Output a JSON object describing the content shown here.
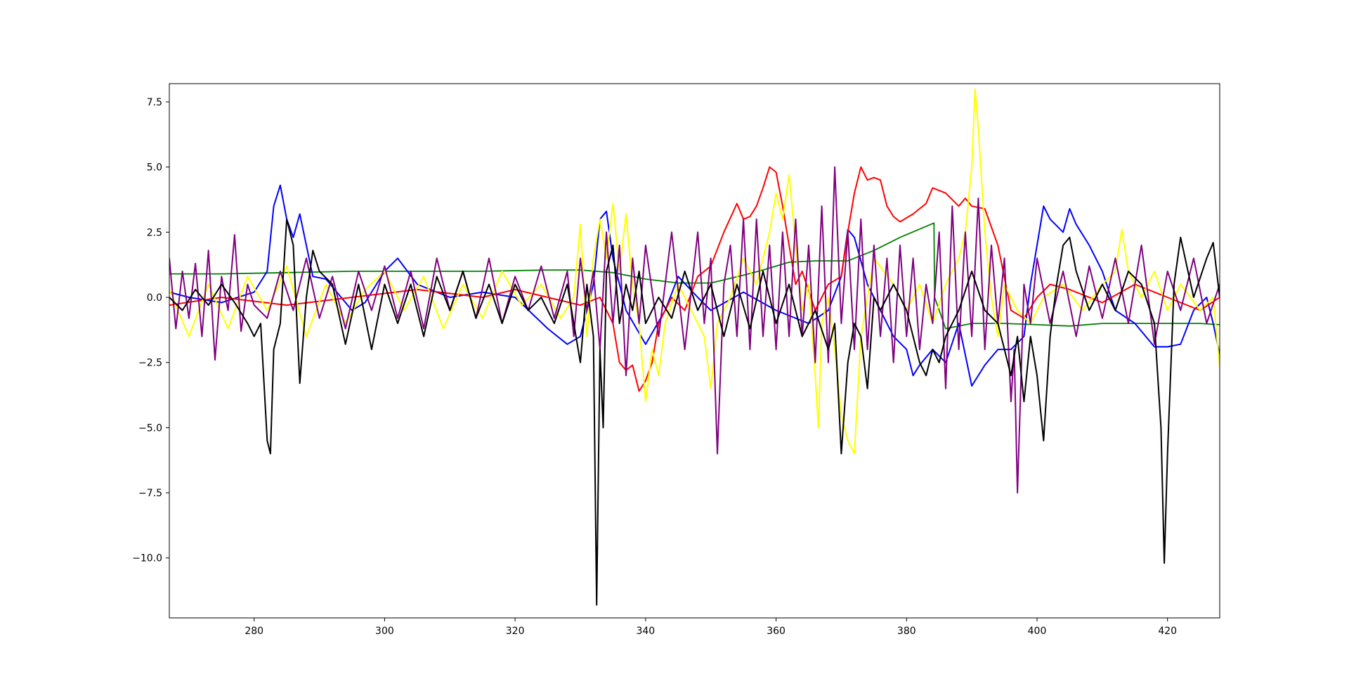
{
  "chart_data": {
    "type": "line",
    "title": "",
    "xlabel": "",
    "ylabel": "",
    "xlim": [
      267.0,
      428.0
    ],
    "ylim": [
      -12.3,
      8.2
    ],
    "x_ticks": [
      280,
      300,
      320,
      340,
      360,
      380,
      400,
      420
    ],
    "y_ticks": [
      -10.0,
      -7.5,
      -5.0,
      -2.5,
      0.0,
      2.5,
      5.0,
      7.5
    ],
    "x_tick_labels": [
      "280",
      "300",
      "320",
      "340",
      "360",
      "380",
      "400",
      "420"
    ],
    "y_tick_labels": [
      "−10.0",
      "−7.5",
      "−5.0",
      "−2.5",
      "0.0",
      "2.5",
      "5.0",
      "7.5"
    ],
    "grid": false,
    "legend": "none",
    "series": [
      {
        "color": "#008000",
        "x": [
          267,
          275,
          285,
          295,
          305,
          315,
          325,
          330,
          335,
          340,
          345,
          350,
          355,
          358,
          362,
          366,
          371,
          375,
          379,
          384.2,
          384.3,
          386,
          390,
          395,
          400,
          405,
          410,
          415,
          420,
          425,
          428
        ],
        "y": [
          0.9,
          0.9,
          0.95,
          1.0,
          1.0,
          1.0,
          1.05,
          1.05,
          0.95,
          0.7,
          0.55,
          0.55,
          0.85,
          1.05,
          1.35,
          1.4,
          1.4,
          1.8,
          2.3,
          2.85,
          0.0,
          -1.2,
          -1.0,
          -1.0,
          -1.05,
          -1.1,
          -1.0,
          -1.0,
          -1.0,
          -1.0,
          -1.05
        ]
      },
      {
        "color": "#0000ff",
        "x": [
          267,
          270,
          275,
          280,
          282,
          283,
          284,
          285,
          286,
          287,
          288,
          289,
          291,
          295,
          297,
          300,
          302,
          305,
          310,
          315,
          320,
          325,
          328,
          330,
          331,
          332,
          333,
          334,
          335,
          337,
          340,
          343,
          345,
          348,
          350,
          355,
          360,
          365,
          368,
          370,
          371,
          372,
          374,
          376,
          378,
          380,
          381,
          382,
          384,
          386,
          388,
          390,
          392,
          394,
          396,
          398,
          399,
          400,
          401,
          402,
          404,
          405,
          406,
          408,
          410,
          412,
          415,
          418,
          420,
          422,
          424,
          426,
          427,
          428
        ],
        "y": [
          0.2,
          0.0,
          -0.2,
          0.2,
          1.0,
          3.5,
          4.3,
          3.0,
          2.3,
          3.2,
          2.0,
          0.8,
          0.7,
          -0.5,
          -0.2,
          1.0,
          1.5,
          0.5,
          0.0,
          0.2,
          0.0,
          -1.2,
          -1.8,
          -1.5,
          -0.5,
          0.5,
          3.0,
          3.3,
          1.5,
          -0.5,
          -1.8,
          -0.5,
          0.8,
          0.0,
          -0.5,
          0.2,
          -0.5,
          -1.0,
          -0.5,
          0.8,
          2.6,
          2.3,
          0.5,
          -0.5,
          -1.5,
          -2.0,
          -3.0,
          -2.6,
          -2.0,
          -2.5,
          -1.0,
          -3.4,
          -2.6,
          -2.0,
          -2.0,
          -1.5,
          0.5,
          2.0,
          3.5,
          3.0,
          2.5,
          3.4,
          2.8,
          2.0,
          1.0,
          -0.5,
          -1.0,
          -1.9,
          -1.9,
          -1.8,
          -0.5,
          0.0,
          -1.0,
          -2.2
        ]
      },
      {
        "color": "#ff0000",
        "x": [
          267,
          275,
          285,
          295,
          305,
          315,
          320,
          325,
          330,
          333,
          335,
          336,
          337,
          338,
          339,
          340,
          341,
          342,
          344,
          346,
          348,
          350,
          352,
          354,
          355,
          356,
          357,
          358,
          359,
          360,
          361,
          362,
          363,
          364,
          366,
          368,
          370,
          371,
          372,
          373,
          374,
          375,
          376,
          377,
          378,
          379,
          381,
          383,
          384,
          386,
          388,
          389,
          390,
          392,
          394,
          396,
          398,
          400,
          402,
          405,
          410,
          415,
          420,
          425,
          428
        ],
        "y": [
          -0.3,
          0.0,
          -0.3,
          0.0,
          0.3,
          0.0,
          0.3,
          0.0,
          -0.3,
          0.0,
          -1.0,
          -2.5,
          -2.8,
          -2.6,
          -3.6,
          -3.2,
          -2.5,
          -1.0,
          0.0,
          -0.5,
          0.8,
          1.2,
          2.5,
          3.6,
          3.0,
          3.1,
          3.5,
          4.2,
          5.0,
          4.8,
          3.5,
          2.0,
          0.5,
          1.0,
          -0.5,
          0.5,
          0.8,
          2.5,
          4.0,
          5.0,
          4.5,
          4.6,
          4.5,
          3.5,
          3.1,
          2.9,
          3.2,
          3.6,
          4.2,
          4.0,
          3.5,
          3.8,
          3.5,
          3.4,
          2.0,
          -0.5,
          -0.8,
          0.0,
          0.5,
          0.3,
          -0.2,
          0.5,
          0.0,
          -0.5,
          0.0
        ]
      },
      {
        "color": "#ffff00",
        "x": [
          267,
          270,
          273,
          276,
          279,
          282,
          285,
          288,
          291,
          294,
          297,
          300,
          303,
          306,
          309,
          312,
          315,
          318,
          321,
          324,
          327,
          329,
          330,
          331,
          332,
          333,
          334,
          335,
          336,
          337,
          338,
          339,
          340,
          341,
          342,
          343,
          345,
          347,
          349,
          350,
          351,
          353,
          355,
          357,
          359,
          360,
          361,
          362,
          363,
          364,
          365,
          366,
          366.5,
          367,
          368,
          369,
          370,
          371,
          372,
          373,
          375,
          378,
          380,
          382,
          384,
          386,
          388,
          389,
          390,
          390.5,
          391,
          392,
          393,
          394,
          395,
          397,
          399,
          401,
          404,
          407,
          410,
          412,
          413,
          414,
          416,
          418,
          420,
          422,
          425,
          427,
          428
        ],
        "y": [
          0.3,
          -1.5,
          0.5,
          -1.2,
          0.8,
          -0.5,
          1.2,
          -1.5,
          0.5,
          -1.0,
          0.3,
          1.0,
          -0.5,
          0.8,
          -1.2,
          0.5,
          -0.8,
          1.0,
          -0.3,
          0.5,
          -0.8,
          0.0,
          2.8,
          -1.5,
          1.5,
          3.0,
          1.5,
          3.6,
          1.0,
          3.2,
          0.5,
          -1.0,
          -4.0,
          -2.0,
          -3.0,
          -1.0,
          0.5,
          -0.5,
          -1.5,
          -3.5,
          -1.0,
          0.0,
          1.5,
          0.5,
          2.5,
          4.0,
          3.0,
          4.7,
          2.0,
          -0.5,
          0.5,
          -3.0,
          -5.0,
          -1.0,
          0.0,
          -2.0,
          -4.5,
          -5.5,
          -6.0,
          -1.5,
          1.5,
          0.5,
          -0.5,
          0.5,
          -1.0,
          0.5,
          1.5,
          2.5,
          5.0,
          8.0,
          6.5,
          2.5,
          0.0,
          -1.5,
          0.5,
          -0.5,
          -1.0,
          0.0,
          0.5,
          -0.5,
          0.5,
          1.0,
          2.6,
          1.0,
          0.0,
          1.0,
          -0.5,
          0.5,
          -0.5,
          0.0,
          -2.7
        ]
      },
      {
        "color": "#800080",
        "x": [
          267,
          268,
          269,
          270,
          271,
          272,
          273,
          274,
          275,
          276,
          277,
          278,
          279,
          280,
          282,
          284,
          286,
          288,
          290,
          292,
          294,
          296,
          298,
          300,
          302,
          304,
          306,
          308,
          310,
          312,
          314,
          316,
          318,
          320,
          322,
          324,
          326,
          328,
          329,
          330,
          331,
          332,
          333,
          334,
          335,
          336,
          337,
          338,
          339,
          340,
          342,
          344,
          346,
          348,
          349,
          350,
          351,
          352,
          353,
          354,
          355,
          356,
          357,
          358,
          359,
          360,
          361,
          362,
          363,
          364,
          365,
          366,
          367,
          368,
          369,
          370,
          371,
          372,
          373,
          374,
          375,
          376,
          377,
          378,
          379,
          380,
          381,
          382,
          383,
          384,
          385,
          386,
          387,
          388,
          389,
          390,
          391,
          392,
          393,
          394,
          395,
          396,
          396.5,
          397,
          398,
          399,
          400,
          402,
          404,
          406,
          408,
          410,
          412,
          414,
          416,
          418,
          420,
          422,
          424,
          426,
          428
        ],
        "y": [
          1.5,
          -1.2,
          1.0,
          -0.8,
          1.3,
          -1.5,
          1.8,
          -2.4,
          0.8,
          -0.5,
          2.4,
          -1.3,
          0.5,
          -0.3,
          -0.8,
          1.0,
          -0.5,
          1.5,
          -0.8,
          0.8,
          -1.2,
          1.0,
          -0.5,
          1.2,
          -0.8,
          1.0,
          -1.2,
          1.5,
          -0.5,
          1.0,
          -0.8,
          1.5,
          -1.0,
          0.8,
          -0.5,
          1.2,
          -0.8,
          1.0,
          -1.5,
          1.5,
          -0.5,
          1.0,
          -2.0,
          2.5,
          -1.0,
          2.0,
          -3.0,
          1.5,
          -1.0,
          2.0,
          -1.5,
          2.5,
          -2.0,
          2.5,
          -1.0,
          1.5,
          -6.0,
          0.5,
          2.0,
          -1.5,
          3.0,
          -2.0,
          3.0,
          -1.5,
          2.0,
          -2.0,
          2.5,
          -1.5,
          3.0,
          -1.5,
          2.0,
          -2.5,
          3.5,
          -2.5,
          5.0,
          -1.0,
          2.5,
          -2.0,
          3.0,
          -2.0,
          2.0,
          -1.5,
          1.5,
          -2.5,
          2.0,
          -1.5,
          1.5,
          -2.0,
          0.5,
          -1.0,
          2.5,
          -3.5,
          3.5,
          -2.0,
          2.5,
          -1.5,
          3.8,
          -2.0,
          2.0,
          -1.0,
          1.5,
          -4.0,
          -2.0,
          -7.5,
          0.5,
          -1.0,
          1.5,
          -1.0,
          1.0,
          -1.5,
          1.2,
          -0.8,
          1.5,
          -1.0,
          2.0,
          -1.8,
          1.0,
          -0.5,
          1.5,
          -1.0,
          0.5
        ]
      },
      {
        "color": "#000000",
        "x": [
          267,
          269,
          271,
          273,
          275,
          277,
          279,
          280,
          281,
          282,
          282.5,
          283,
          284,
          285,
          286,
          287,
          288,
          289,
          290,
          292,
          294,
          296,
          298,
          300,
          302,
          304,
          306,
          308,
          310,
          312,
          314,
          316,
          318,
          320,
          322,
          324,
          326,
          328,
          330,
          331,
          332,
          332.5,
          333,
          333.5,
          334,
          335,
          336,
          337,
          338,
          339,
          340,
          342,
          344,
          346,
          348,
          350,
          352,
          354,
          356,
          358,
          360,
          362,
          364,
          366,
          368,
          369,
          370,
          371,
          372,
          373,
          374,
          375,
          376,
          378,
          380,
          382,
          383,
          384,
          385,
          386,
          388,
          390,
          392,
          394,
          395,
          396,
          397,
          398,
          399,
          400,
          401,
          402,
          403,
          404,
          405,
          406,
          408,
          410,
          412,
          414,
          416,
          418,
          419,
          419.5,
          420,
          421,
          422,
          424,
          426,
          427,
          428
        ],
        "y": [
          0.0,
          -0.5,
          0.3,
          -0.3,
          0.5,
          -0.2,
          -1.0,
          -1.5,
          -1.0,
          -5.5,
          -6.0,
          -2.0,
          -1.0,
          3.0,
          2.0,
          -3.3,
          0.0,
          1.8,
          1.0,
          0.5,
          -1.8,
          0.5,
          -2.0,
          0.5,
          -1.0,
          0.5,
          -1.5,
          0.8,
          -0.5,
          1.0,
          -0.8,
          0.5,
          -1.0,
          0.5,
          -0.5,
          0.0,
          -1.0,
          0.5,
          -2.5,
          0.5,
          -1.5,
          -11.8,
          -2.0,
          -5.0,
          1.0,
          2.0,
          -1.0,
          0.5,
          -0.5,
          1.0,
          -1.0,
          0.0,
          -0.8,
          1.0,
          -0.5,
          0.5,
          -1.5,
          0.5,
          -1.2,
          1.0,
          -1.0,
          0.5,
          -1.5,
          -0.5,
          -2.0,
          -1.0,
          -6.0,
          -2.5,
          -1.0,
          -1.5,
          -3.5,
          0.0,
          -0.5,
          0.5,
          -0.5,
          -2.5,
          -3.0,
          -2.0,
          -2.5,
          -1.5,
          -0.5,
          1.0,
          -0.5,
          -1.0,
          -2.0,
          -3.0,
          -1.5,
          -4.0,
          -1.5,
          -3.0,
          -5.5,
          -1.5,
          0.5,
          2.0,
          2.3,
          1.0,
          -0.5,
          0.5,
          -0.5,
          1.0,
          0.5,
          -1.0,
          -5.0,
          -10.2,
          -6.0,
          0.5,
          2.3,
          0.0,
          1.5,
          2.1,
          0.0
        ]
      }
    ]
  }
}
